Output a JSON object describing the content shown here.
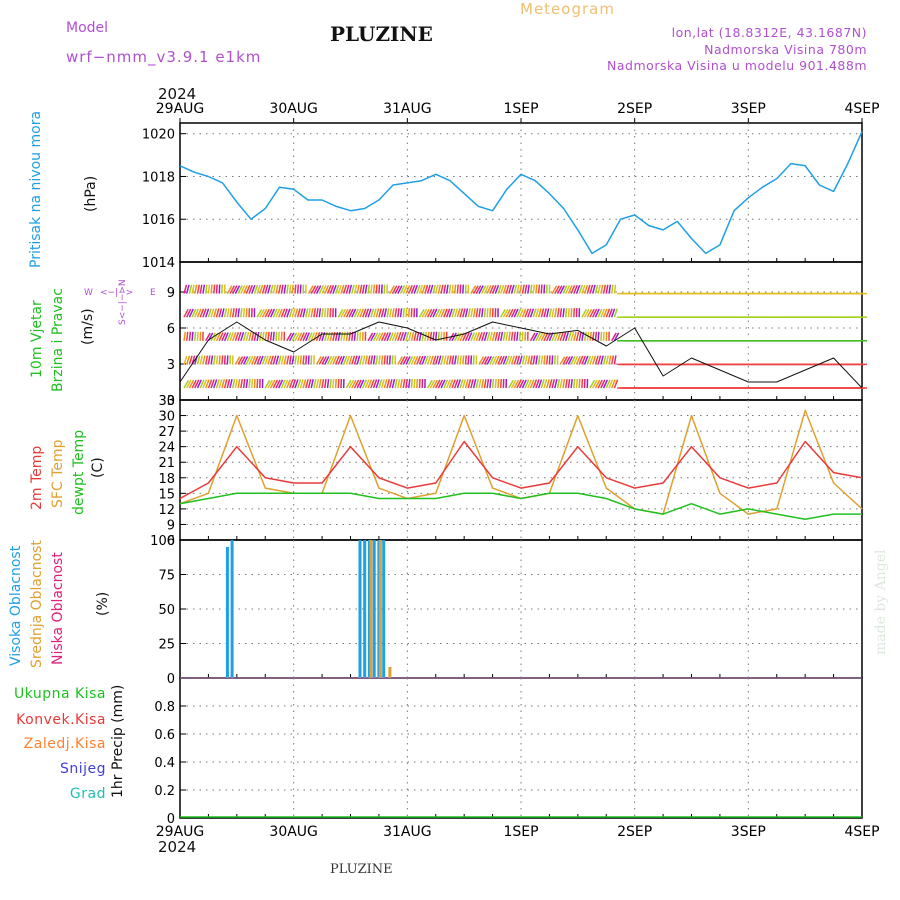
{
  "header": {
    "model_label": "Model",
    "model_name": "wrf−nmm_v3.9.1  e1km",
    "station": "PLUZINE",
    "product": "Meteogram",
    "lonlat": "lon,lat (18.8312E, 43.1687N)",
    "elevation": "Nadmorska Visina 780m",
    "model_elevation": "Nadmorska Visina u modelu 901.488m",
    "year": "2024"
  },
  "footer": {
    "station": "PLUZINE",
    "year": "2024",
    "credit": "made by Angel"
  },
  "colors": {
    "pressure": "#1ea0e6",
    "wind_title": "#20c020",
    "temp2m": "#e83a3a",
    "sfc": "#e0a030",
    "dewpoint": "#20c020",
    "high_cloud": "#1ea0e6",
    "mid_cloud": "#e0a030",
    "low_cloud": "#e0207a",
    "total_precip": "#20c020",
    "conv_precip": "#e83a3a",
    "frozen_precip": "#ff8030",
    "snow": "#4040e0",
    "graupel": "#20c0b0",
    "meta": "#b050d0"
  },
  "panel_labels": {
    "pressure": [
      "Pritisak na nivou mora",
      "(hPa)"
    ],
    "wind": [
      "10m Vjetar",
      "Brzina i Pravac",
      "(m/s)"
    ],
    "wind_compass": [
      "W",
      "<−|−>",
      "E",
      "S<−|−>N"
    ],
    "temp": [
      "2m Temp",
      "SFC Temp",
      "dewpt Temp",
      "(C)"
    ],
    "cloud": [
      "Visoka Oblacnost",
      "Srednja Oblacnost",
      "Niska Oblacnost",
      "(%)"
    ],
    "precip_units": "1hr Precip (mm)",
    "precip_legend": [
      "Ukupna Kisa",
      "Konvek.Kisa",
      "Zaledj.Kisa",
      "Snijeg",
      "Grad"
    ]
  },
  "chart_data": [
    {
      "type": "line",
      "panel": "pressure",
      "x_ticks": [
        "29AUG",
        "30AUG",
        "31AUG",
        "1SEP",
        "2SEP",
        "3SEP",
        "4SEP"
      ],
      "xlim": [
        "2024-08-29 00:00",
        "2024-09-04 00:00"
      ],
      "ylim": [
        1014,
        1020.5
      ],
      "y_ticks": [
        "1014",
        "1016",
        "1018",
        "1020"
      ],
      "grid": true,
      "series": [
        {
          "name": "Pritisak na nivou mora",
          "x": [
            "2024-08-29 00:00",
            "2024-08-29 03:00",
            "2024-08-29 06:00",
            "2024-08-29 09:00",
            "2024-08-29 12:00",
            "2024-08-29 15:00",
            "2024-08-29 18:00",
            "2024-08-29 21:00",
            "2024-08-30 00:00",
            "2024-08-30 03:00",
            "2024-08-30 06:00",
            "2024-08-30 09:00",
            "2024-08-30 12:00",
            "2024-08-30 15:00",
            "2024-08-30 18:00",
            "2024-08-30 21:00",
            "2024-08-31 00:00",
            "2024-08-31 03:00",
            "2024-08-31 06:00",
            "2024-08-31 09:00",
            "2024-08-31 12:00",
            "2024-08-31 15:00",
            "2024-08-31 18:00",
            "2024-08-31 21:00",
            "2024-09-01 00:00",
            "2024-09-01 03:00",
            "2024-09-01 06:00",
            "2024-09-01 09:00",
            "2024-09-01 12:00",
            "2024-09-01 15:00",
            "2024-09-01 18:00",
            "2024-09-01 21:00",
            "2024-09-02 00:00",
            "2024-09-02 03:00",
            "2024-09-02 06:00",
            "2024-09-02 09:00",
            "2024-09-02 12:00",
            "2024-09-02 15:00",
            "2024-09-02 18:00",
            "2024-09-02 21:00",
            "2024-09-03 00:00",
            "2024-09-03 03:00",
            "2024-09-03 06:00",
            "2024-09-03 09:00",
            "2024-09-03 12:00",
            "2024-09-03 15:00",
            "2024-09-03 18:00",
            "2024-09-03 21:00",
            "2024-09-04 00:00"
          ],
          "y": [
            1018.5,
            1018.2,
            1018.0,
            1017.7,
            1016.8,
            1016.0,
            1016.5,
            1017.5,
            1017.4,
            1016.9,
            1016.9,
            1016.6,
            1016.4,
            1016.5,
            1016.9,
            1017.6,
            1017.7,
            1017.8,
            1018.1,
            1017.8,
            1017.2,
            1016.6,
            1016.4,
            1017.4,
            1018.1,
            1017.8,
            1017.2,
            1016.5,
            1015.5,
            1014.4,
            1014.8,
            1016.0,
            1016.2,
            1015.7,
            1015.5,
            1015.9,
            1015.1,
            1014.4,
            1014.8,
            1016.4,
            1017.0,
            1017.5,
            1017.9,
            1018.6,
            1018.5,
            1017.6,
            1017.3,
            1018.6,
            1020.1
          ]
        }
      ]
    },
    {
      "type": "line",
      "panel": "wind",
      "ylim": [
        0,
        11.5
      ],
      "y_ticks": [
        "0",
        "3",
        "6",
        "9"
      ],
      "grid": true,
      "series": [
        {
          "name": "10m Vjetar",
          "x": [
            "2024-08-29 00:00",
            "2024-08-29 06:00",
            "2024-08-29 12:00",
            "2024-08-29 18:00",
            "2024-08-30 00:00",
            "2024-08-30 06:00",
            "2024-08-30 12:00",
            "2024-08-30 18:00",
            "2024-08-31 00:00",
            "2024-08-31 06:00",
            "2024-08-31 12:00",
            "2024-08-31 18:00",
            "2024-09-01 00:00",
            "2024-09-01 06:00",
            "2024-09-01 12:00",
            "2024-09-01 18:00",
            "2024-09-02 00:00",
            "2024-09-02 06:00",
            "2024-09-02 12:00",
            "2024-09-02 18:00",
            "2024-09-03 00:00",
            "2024-09-03 06:00",
            "2024-09-03 12:00",
            "2024-09-03 18:00",
            "2024-09-04 00:00"
          ],
          "y": [
            1.5,
            5.0,
            6.5,
            5.0,
            4.0,
            5.5,
            5.5,
            6.5,
            6.0,
            5.0,
            5.5,
            6.5,
            6.0,
            5.5,
            5.8,
            4.5,
            6.0,
            2.0,
            3.5,
            2.5,
            1.5,
            1.5,
            2.5,
            3.5,
            1.0
          ]
        }
      ]
    },
    {
      "type": "line",
      "panel": "temperature",
      "ylim": [
        6,
        33
      ],
      "y_ticks": [
        "6",
        "9",
        "12",
        "15",
        "18",
        "21",
        "24",
        "27",
        "30",
        "33"
      ],
      "grid": true,
      "series": [
        {
          "name": "2m Temp",
          "x": [
            "2024-08-29 00:00",
            "2024-08-29 06:00",
            "2024-08-29 12:00",
            "2024-08-29 18:00",
            "2024-08-30 00:00",
            "2024-08-30 06:00",
            "2024-08-30 12:00",
            "2024-08-30 18:00",
            "2024-08-31 00:00",
            "2024-08-31 06:00",
            "2024-08-31 12:00",
            "2024-08-31 18:00",
            "2024-09-01 00:00",
            "2024-09-01 06:00",
            "2024-09-01 12:00",
            "2024-09-01 18:00",
            "2024-09-02 00:00",
            "2024-09-02 06:00",
            "2024-09-02 12:00",
            "2024-09-02 18:00",
            "2024-09-03 00:00",
            "2024-09-03 06:00",
            "2024-09-03 12:00",
            "2024-09-03 18:00",
            "2024-09-04 00:00"
          ],
          "y": [
            14,
            17,
            24,
            18,
            17,
            17,
            24,
            18,
            16,
            17,
            25,
            18,
            16,
            17,
            24,
            18,
            16,
            17,
            24,
            18,
            16,
            17,
            25,
            19,
            18
          ]
        },
        {
          "name": "SFC Temp",
          "x": [
            "2024-08-29 00:00",
            "2024-08-29 06:00",
            "2024-08-29 12:00",
            "2024-08-29 18:00",
            "2024-08-30 00:00",
            "2024-08-30 06:00",
            "2024-08-30 12:00",
            "2024-08-30 18:00",
            "2024-08-31 00:00",
            "2024-08-31 06:00",
            "2024-08-31 12:00",
            "2024-08-31 18:00",
            "2024-09-01 00:00",
            "2024-09-01 06:00",
            "2024-09-01 12:00",
            "2024-09-01 18:00",
            "2024-09-02 00:00",
            "2024-09-02 06:00",
            "2024-09-02 12:00",
            "2024-09-02 18:00",
            "2024-09-03 00:00",
            "2024-09-03 06:00",
            "2024-09-03 12:00",
            "2024-09-03 18:00",
            "2024-09-04 00:00"
          ],
          "y": [
            13,
            15,
            30,
            16,
            15,
            15,
            30,
            16,
            14,
            15,
            30,
            16,
            14,
            15,
            30,
            16,
            12,
            11,
            30,
            15,
            11,
            12,
            31,
            17,
            12
          ]
        },
        {
          "name": "dewpt Temp",
          "x": [
            "2024-08-29 00:00",
            "2024-08-29 06:00",
            "2024-08-29 12:00",
            "2024-08-29 18:00",
            "2024-08-30 00:00",
            "2024-08-30 06:00",
            "2024-08-30 12:00",
            "2024-08-30 18:00",
            "2024-08-31 00:00",
            "2024-08-31 06:00",
            "2024-08-31 12:00",
            "2024-08-31 18:00",
            "2024-09-01 00:00",
            "2024-09-01 06:00",
            "2024-09-01 12:00",
            "2024-09-01 18:00",
            "2024-09-02 00:00",
            "2024-09-02 06:00",
            "2024-09-02 12:00",
            "2024-09-02 18:00",
            "2024-09-03 00:00",
            "2024-09-03 06:00",
            "2024-09-03 12:00",
            "2024-09-03 18:00",
            "2024-09-04 00:00"
          ],
          "y": [
            13,
            14,
            15,
            15,
            15,
            15,
            15,
            14,
            14,
            14,
            15,
            15,
            14,
            15,
            15,
            14,
            12,
            11,
            13,
            11,
            12,
            11,
            10,
            11,
            11
          ]
        }
      ]
    },
    {
      "type": "bar",
      "panel": "cloud",
      "ylim": [
        0,
        100
      ],
      "y_ticks": [
        "0",
        "25",
        "50",
        "75",
        "100"
      ],
      "grid": true,
      "series": [
        {
          "name": "Visoka Oblacnost",
          "x": [
            "2024-08-29 10:00",
            "2024-08-29 11:00",
            "2024-08-30 14:00",
            "2024-08-30 15:00",
            "2024-08-30 16:00",
            "2024-08-30 17:00",
            "2024-08-30 18:00",
            "2024-08-30 19:00"
          ],
          "values": [
            95,
            100,
            100,
            100,
            100,
            100,
            100,
            100
          ]
        },
        {
          "name": "Srednja Oblacnost",
          "x": [
            "2024-08-30 16:00",
            "2024-08-30 18:00",
            "2024-08-30 20:00"
          ],
          "values": [
            100,
            100,
            8
          ]
        },
        {
          "name": "Niska Oblacnost",
          "x": [],
          "values": []
        }
      ]
    },
    {
      "type": "bar",
      "panel": "precipitation",
      "ylim": [
        0,
        1.0
      ],
      "y_ticks": [
        "0",
        "0.2",
        "0.4",
        "0.6",
        "0.8"
      ],
      "grid": true,
      "series": [
        {
          "name": "Ukupna Kisa",
          "x": [],
          "values": []
        },
        {
          "name": "Konvek.Kisa",
          "x": [],
          "values": []
        },
        {
          "name": "Zaledj.Kisa",
          "x": [],
          "values": []
        },
        {
          "name": "Snijeg",
          "x": [],
          "values": []
        },
        {
          "name": "Grad",
          "x": [],
          "values": []
        }
      ]
    }
  ]
}
